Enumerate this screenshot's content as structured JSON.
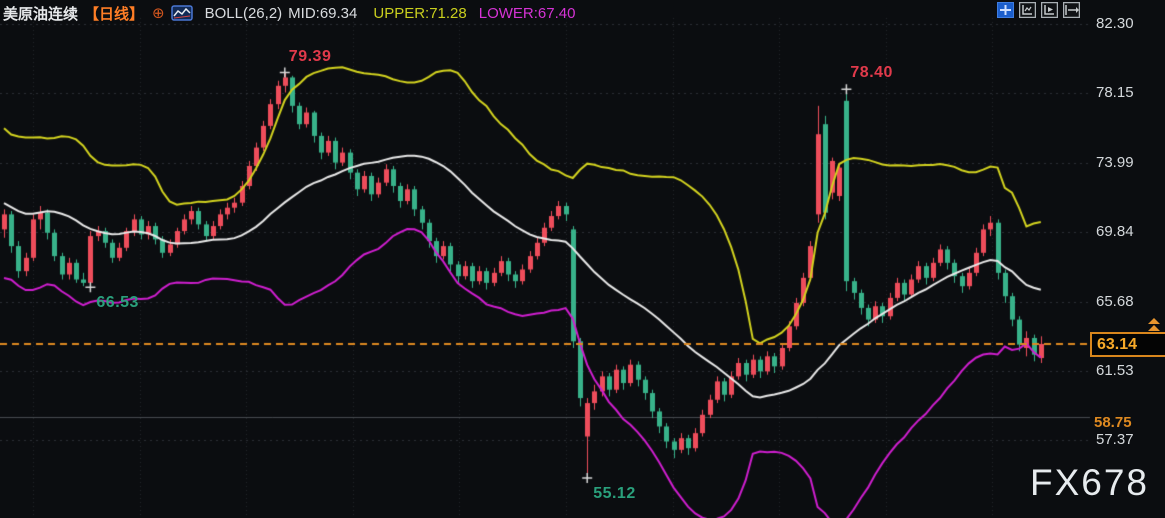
{
  "header": {
    "symbol": "美原油连续",
    "period": "【日线】",
    "indicator": "BOLL(26,2)",
    "mid": "MID:69.34",
    "upper": "UPPER:71.28",
    "lower": "LOWER:67.40"
  },
  "toolbar": {
    "icons": [
      "crosshair",
      "chart-pane",
      "chart-play",
      "exit-pane"
    ]
  },
  "axis": {
    "ticks": [
      {
        "text": "82.30",
        "value": 82.3
      },
      {
        "text": "78.15",
        "value": 78.15
      },
      {
        "text": "73.99",
        "value": 73.99
      },
      {
        "text": "69.84",
        "value": 69.84
      },
      {
        "text": "65.68",
        "value": 65.68
      },
      {
        "text": "61.53",
        "value": 61.53
      },
      {
        "text": "57.37",
        "value": 57.37
      }
    ]
  },
  "markers": {
    "last_price": {
      "label": "63.14",
      "value": 63.14
    },
    "level_line": {
      "label": "58.75",
      "value": 58.75
    }
  },
  "annotations": [
    {
      "label": "79.39",
      "value": 79.39,
      "index": 39,
      "kind": "high",
      "tone": "red"
    },
    {
      "label": "78.40",
      "value": 78.4,
      "index": 117,
      "kind": "high",
      "tone": "red"
    },
    {
      "label": "66.53",
      "value": 66.53,
      "index": 12,
      "kind": "low",
      "tone": "green"
    },
    {
      "label": "55.12",
      "value": 55.12,
      "index": 81,
      "kind": "low",
      "tone": "green"
    }
  ],
  "watermark": "FX678",
  "colors": {
    "background": "#0b0d10",
    "up_candle": "#ee4d5b",
    "down_candle": "#38b28a",
    "boll_upper": "#d3d31f",
    "boll_mid": "#e8e8e8",
    "boll_lower": "#cf1ecf",
    "last_price_line": "#df8a21",
    "level_line": "#7a7f85",
    "grid": "#2b2f35",
    "axis_text": "#d5d9dc",
    "cross_marker": "#d8d8d8"
  },
  "chart_data": {
    "type": "candlestick",
    "title": "美原油连续 日线 (US Crude Oil Continuous, Daily)",
    "indicator": {
      "name": "BOLL",
      "period": 26,
      "mult": 2
    },
    "y_axis": {
      "ticks": [
        82.3,
        78.15,
        73.99,
        69.84,
        65.68,
        61.53,
        57.37
      ],
      "visible_range": [
        53.0,
        83.7
      ]
    },
    "legend": [
      "BOLL UPPER",
      "BOLL MID",
      "BOLL LOWER"
    ],
    "preroll_closes": [
      74.5,
      75.2,
      73.8,
      72.3,
      70.6,
      69.0,
      68.0,
      69.0,
      70.5,
      72.0,
      73.4,
      74.6,
      75.0,
      73.6,
      71.8,
      70.2,
      68.6,
      67.8,
      68.8,
      70.4,
      72.2,
      73.8,
      74.8,
      73.2,
      71.4,
      70.0
    ],
    "candles": [
      [
        70.0,
        71.2,
        69.5,
        70.9
      ],
      [
        70.9,
        71.1,
        68.6,
        69.0
      ],
      [
        69.0,
        69.3,
        67.1,
        67.5
      ],
      [
        67.5,
        68.6,
        67.2,
        68.3
      ],
      [
        68.3,
        70.9,
        68.1,
        70.6
      ],
      [
        70.6,
        71.4,
        70.0,
        71.0
      ],
      [
        71.0,
        71.2,
        69.4,
        69.8
      ],
      [
        69.8,
        70.0,
        68.1,
        68.4
      ],
      [
        68.4,
        68.6,
        67.0,
        67.3
      ],
      [
        67.3,
        68.3,
        67.0,
        68.0
      ],
      [
        68.0,
        68.2,
        66.8,
        67.0
      ],
      [
        67.0,
        67.4,
        66.6,
        66.8
      ],
      [
        66.8,
        69.9,
        66.53,
        69.6
      ],
      [
        69.6,
        70.2,
        69.3,
        69.9
      ],
      [
        69.9,
        70.1,
        68.9,
        69.2
      ],
      [
        69.2,
        69.4,
        68.0,
        68.3
      ],
      [
        68.3,
        69.2,
        68.1,
        68.9
      ],
      [
        68.9,
        70.1,
        68.7,
        69.9
      ],
      [
        69.9,
        70.9,
        69.6,
        70.6
      ],
      [
        70.6,
        70.8,
        69.4,
        69.7
      ],
      [
        69.7,
        70.5,
        69.4,
        70.2
      ],
      [
        70.2,
        70.4,
        69.1,
        69.4
      ],
      [
        69.4,
        69.6,
        68.3,
        68.6
      ],
      [
        68.6,
        69.4,
        68.4,
        69.1
      ],
      [
        69.1,
        70.1,
        68.9,
        69.9
      ],
      [
        69.9,
        70.9,
        69.7,
        70.6
      ],
      [
        70.6,
        71.4,
        70.3,
        71.1
      ],
      [
        71.1,
        71.3,
        70.0,
        70.3
      ],
      [
        70.3,
        70.5,
        69.3,
        69.6
      ],
      [
        69.6,
        70.5,
        69.4,
        70.2
      ],
      [
        70.2,
        71.2,
        70.0,
        70.9
      ],
      [
        70.9,
        71.6,
        70.6,
        71.3
      ],
      [
        71.3,
        71.9,
        71.0,
        71.6
      ],
      [
        71.6,
        72.9,
        71.4,
        72.6
      ],
      [
        72.6,
        74.1,
        72.4,
        73.8
      ],
      [
        73.8,
        75.2,
        73.5,
        74.9
      ],
      [
        74.9,
        76.5,
        74.7,
        76.2
      ],
      [
        76.2,
        77.8,
        76.0,
        77.5
      ],
      [
        77.5,
        78.9,
        77.2,
        78.6
      ],
      [
        78.6,
        79.39,
        78.2,
        79.1
      ],
      [
        79.1,
        79.2,
        77.0,
        77.4
      ],
      [
        77.4,
        77.6,
        76.0,
        76.3
      ],
      [
        76.3,
        77.3,
        76.1,
        77.0
      ],
      [
        77.0,
        77.1,
        75.2,
        75.6
      ],
      [
        75.6,
        75.8,
        74.2,
        74.6
      ],
      [
        74.6,
        75.6,
        74.4,
        75.3
      ],
      [
        75.3,
        75.5,
        73.6,
        74.0
      ],
      [
        74.0,
        74.9,
        73.8,
        74.6
      ],
      [
        74.6,
        74.8,
        73.0,
        73.4
      ],
      [
        73.4,
        73.6,
        72.0,
        72.4
      ],
      [
        72.4,
        73.5,
        72.2,
        73.2
      ],
      [
        73.2,
        73.4,
        71.7,
        72.1
      ],
      [
        72.1,
        73.1,
        71.9,
        72.8
      ],
      [
        72.8,
        73.9,
        72.6,
        73.6
      ],
      [
        73.6,
        73.8,
        72.2,
        72.6
      ],
      [
        72.6,
        72.8,
        71.3,
        71.7
      ],
      [
        71.7,
        72.7,
        71.5,
        72.4
      ],
      [
        72.4,
        72.6,
        70.8,
        71.2
      ],
      [
        71.2,
        71.4,
        70.0,
        70.4
      ],
      [
        70.4,
        70.6,
        68.9,
        69.3
      ],
      [
        69.3,
        69.5,
        68.0,
        68.4
      ],
      [
        68.4,
        69.3,
        68.2,
        69.0
      ],
      [
        69.0,
        69.2,
        67.5,
        67.9
      ],
      [
        67.9,
        68.1,
        66.8,
        67.2
      ],
      [
        67.2,
        68.1,
        67.0,
        67.8
      ],
      [
        67.8,
        68.0,
        66.5,
        66.9
      ],
      [
        66.9,
        67.8,
        66.7,
        67.5
      ],
      [
        67.5,
        67.7,
        66.4,
        66.8
      ],
      [
        66.8,
        67.7,
        66.6,
        67.4
      ],
      [
        67.4,
        68.4,
        67.2,
        68.1
      ],
      [
        68.1,
        68.3,
        66.9,
        67.3
      ],
      [
        67.3,
        67.5,
        66.5,
        66.9
      ],
      [
        66.9,
        67.9,
        66.7,
        67.6
      ],
      [
        67.6,
        68.7,
        67.4,
        68.4
      ],
      [
        68.4,
        69.5,
        68.2,
        69.2
      ],
      [
        69.2,
        70.4,
        69.0,
        70.1
      ],
      [
        70.1,
        71.1,
        69.9,
        70.8
      ],
      [
        70.8,
        71.7,
        70.6,
        71.4
      ],
      [
        71.4,
        71.6,
        70.5,
        70.9
      ],
      [
        70.0,
        70.2,
        62.9,
        63.3
      ],
      [
        63.3,
        63.5,
        59.4,
        59.9
      ],
      [
        57.6,
        59.9,
        55.12,
        59.6
      ],
      [
        59.6,
        60.7,
        59.2,
        60.3
      ],
      [
        60.3,
        61.5,
        60.0,
        61.2
      ],
      [
        61.2,
        61.4,
        60.0,
        60.4
      ],
      [
        60.4,
        61.9,
        60.2,
        61.6
      ],
      [
        61.6,
        61.8,
        60.4,
        60.8
      ],
      [
        60.8,
        62.2,
        60.6,
        61.9
      ],
      [
        61.9,
        62.1,
        60.6,
        61.0
      ],
      [
        61.0,
        61.2,
        59.8,
        60.2
      ],
      [
        60.2,
        60.4,
        58.7,
        59.1
      ],
      [
        59.1,
        59.3,
        57.8,
        58.2
      ],
      [
        58.2,
        58.4,
        56.9,
        57.3
      ],
      [
        57.3,
        57.5,
        56.3,
        56.8
      ],
      [
        56.8,
        57.8,
        56.6,
        57.5
      ],
      [
        57.5,
        57.7,
        56.5,
        56.9
      ],
      [
        56.9,
        58.1,
        56.7,
        57.8
      ],
      [
        57.8,
        59.2,
        57.6,
        58.9
      ],
      [
        58.9,
        60.1,
        58.7,
        59.8
      ],
      [
        59.8,
        61.2,
        59.6,
        60.9
      ],
      [
        60.9,
        61.1,
        59.7,
        60.1
      ],
      [
        60.1,
        61.5,
        59.9,
        61.2
      ],
      [
        61.2,
        62.3,
        61.0,
        62.0
      ],
      [
        62.0,
        62.2,
        60.9,
        61.3
      ],
      [
        61.3,
        62.5,
        61.1,
        62.2
      ],
      [
        62.2,
        62.4,
        61.1,
        61.5
      ],
      [
        61.5,
        62.7,
        61.3,
        62.4
      ],
      [
        62.4,
        62.6,
        61.4,
        61.8
      ],
      [
        61.8,
        63.2,
        61.6,
        62.9
      ],
      [
        62.9,
        64.5,
        62.7,
        64.2
      ],
      [
        64.2,
        65.9,
        64.0,
        65.6
      ],
      [
        65.6,
        67.4,
        65.4,
        67.1
      ],
      [
        67.1,
        69.3,
        66.9,
        69.0
      ],
      [
        70.9,
        77.4,
        70.4,
        75.7
      ],
      [
        76.3,
        76.8,
        70.6,
        71.0
      ],
      [
        72.2,
        74.3,
        71.8,
        74.1
      ],
      [
        72.0,
        73.9,
        71.7,
        73.7
      ],
      [
        77.7,
        78.4,
        66.3,
        66.9
      ],
      [
        66.9,
        67.1,
        65.8,
        66.2
      ],
      [
        66.2,
        66.4,
        64.9,
        65.3
      ],
      [
        65.3,
        65.5,
        64.2,
        64.6
      ],
      [
        64.6,
        65.7,
        64.4,
        65.4
      ],
      [
        65.4,
        65.6,
        64.4,
        64.8
      ],
      [
        64.8,
        66.2,
        64.6,
        65.9
      ],
      [
        65.9,
        67.1,
        65.7,
        66.8
      ],
      [
        66.8,
        67.0,
        65.7,
        66.1
      ],
      [
        66.1,
        67.3,
        65.9,
        67.0
      ],
      [
        67.0,
        68.1,
        66.8,
        67.8
      ],
      [
        67.8,
        68.0,
        66.7,
        67.1
      ],
      [
        67.1,
        68.3,
        66.9,
        68.0
      ],
      [
        68.0,
        69.1,
        67.8,
        68.8
      ],
      [
        68.8,
        69.0,
        67.6,
        68.0
      ],
      [
        68.0,
        68.2,
        66.8,
        67.2
      ],
      [
        67.2,
        67.4,
        66.2,
        66.6
      ],
      [
        66.6,
        67.7,
        66.4,
        67.4
      ],
      [
        67.4,
        68.9,
        67.2,
        68.6
      ],
      [
        68.6,
        70.3,
        68.4,
        70.0
      ],
      [
        70.0,
        70.8,
        69.6,
        70.4
      ],
      [
        70.4,
        70.6,
        67.0,
        67.4
      ],
      [
        67.4,
        67.6,
        65.6,
        66.0
      ],
      [
        66.0,
        66.2,
        64.2,
        64.6
      ],
      [
        64.6,
        64.8,
        62.7,
        63.1
      ],
      [
        62.9,
        63.9,
        62.4,
        63.5
      ],
      [
        63.5,
        63.7,
        62.1,
        62.5
      ],
      [
        62.3,
        63.6,
        62.0,
        63.14
      ]
    ]
  }
}
